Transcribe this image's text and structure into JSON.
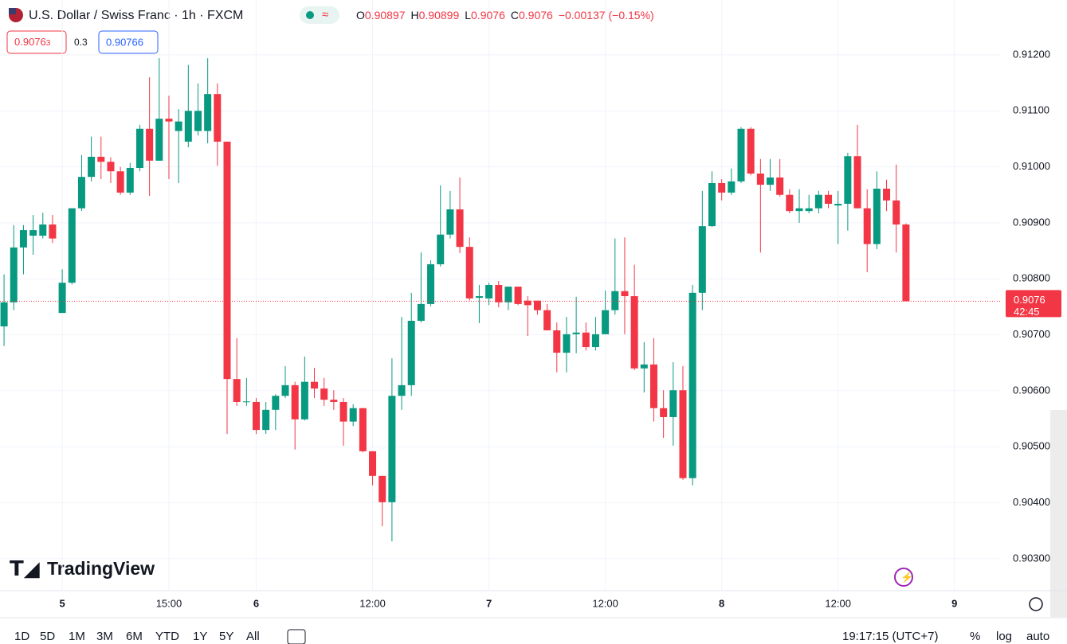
{
  "ui": {
    "symbol": "U.S. Dollar / Swiss Franc · 1h · FXCM",
    "ohlc_letters": [
      "O",
      "H",
      "L",
      "C"
    ],
    "change": "−0.00137 (−0.15%)",
    "bid": "0.9076",
    "bid_small": "3",
    "spread": "0.3",
    "ask": "0.90766",
    "countdown": "42:45",
    "logo": "TradingView",
    "ranges": [
      "1D",
      "5D",
      "1M",
      "3M",
      "6M",
      "YTD",
      "1Y",
      "5Y",
      "All"
    ],
    "clock": "19:17:15 (UTC+7)",
    "scale_options": [
      "%",
      "log",
      "auto"
    ]
  },
  "chart_data": {
    "type": "candlestick",
    "up_color": "#089981",
    "down_color": "#f23645",
    "grid": true,
    "categories": [
      null,
      null,
      null,
      null,
      null,
      null,
      "5",
      null,
      null,
      null,
      null,
      null,
      null,
      null,
      null,
      null,
      null,
      "15:00",
      null,
      null,
      null,
      null,
      null,
      null,
      null,
      null,
      "6",
      null,
      null,
      null,
      null,
      null,
      null,
      null,
      null,
      null,
      null,
      null,
      "12:00",
      null,
      null,
      null,
      null,
      null,
      null,
      null,
      null,
      null,
      null,
      null,
      "7",
      null,
      null,
      null,
      null,
      null,
      null,
      null,
      null,
      null,
      null,
      null,
      "12:00",
      null,
      null,
      null,
      null,
      null,
      null,
      null,
      null,
      null,
      null,
      null,
      "8",
      null,
      null,
      null,
      null,
      null,
      null,
      null,
      null,
      null,
      null,
      null,
      "12:00",
      null,
      null,
      null,
      null,
      null,
      null,
      null,
      null,
      null,
      null,
      null,
      "9",
      null,
      null,
      null,
      null
    ],
    "open": [
      0.90715,
      0.90758,
      0.90856,
      0.90877,
      0.90877,
      0.90897,
      0.90739,
      0.90793,
      0.90926,
      0.90982,
      0.91018,
      0.91009,
      0.90992,
      0.90954,
      0.90998,
      0.91068,
      0.91011,
      0.91086,
      0.91064,
      0.91045,
      0.91064,
      0.91064,
      0.9113,
      0.91045,
      0.90621,
      0.9058,
      0.9058,
      0.9053,
      0.90566,
      0.90591,
      0.9061,
      0.90549,
      0.90616,
      0.90604,
      0.90584,
      0.9058,
      0.90545,
      0.90569,
      0.90492,
      0.90448,
      0.90401,
      0.90591,
      0.9061,
      0.90725,
      0.90755,
      0.90826,
      0.90879,
      0.90924,
      0.90857,
      0.90766,
      0.90765,
      0.90789,
      0.90758,
      0.90786,
      0.90761,
      0.90761,
      0.90744,
      0.90708,
      0.90668,
      0.90701,
      0.90704,
      0.90678,
      0.90701,
      0.90744,
      0.90778,
      0.90769,
      0.9064,
      0.90647,
      0.90569,
      0.90553,
      0.90601,
      0.90444,
      0.90775,
      0.90894,
      0.90971,
      0.90954,
      0.90974,
      0.91068,
      0.90988,
      0.90968,
      0.90981,
      0.9095,
      0.90921,
      0.90921,
      0.90926,
      0.9095,
      0.90931,
      0.90934,
      0.91019,
      0.90926,
      0.90862,
      0.90961,
      0.9094,
      0.90897,
      null,
      null,
      null,
      null,
      null,
      null,
      null,
      null,
      null
    ],
    "high": [
      0.90808,
      0.90896,
      0.90896,
      0.90914,
      0.90918,
      0.90914,
      0.90817,
      0.90926,
      0.91021,
      0.91054,
      0.91054,
      0.91017,
      0.91,
      0.91007,
      0.91075,
      0.9116,
      0.91194,
      0.91127,
      0.91103,
      0.91182,
      0.91149,
      0.91194,
      0.91149,
      0.91045,
      0.90694,
      0.90623,
      0.90587,
      0.9058,
      0.90594,
      0.90644,
      0.90616,
      0.90661,
      0.90641,
      0.90623,
      0.90601,
      0.90587,
      0.90576,
      0.90569,
      0.90492,
      0.90448,
      0.90658,
      0.90732,
      0.90775,
      0.90847,
      0.90833,
      0.90967,
      0.90957,
      0.90981,
      0.90874,
      0.90789,
      0.90793,
      0.90796,
      0.90786,
      0.90786,
      0.90769,
      0.90761,
      0.90755,
      0.90722,
      0.90732,
      0.90768,
      0.90722,
      0.90732,
      0.90779,
      0.90872,
      0.90874,
      0.90825,
      0.90687,
      0.90694,
      0.90601,
      0.90651,
      0.90644,
      0.90789,
      0.90957,
      0.90992,
      0.90978,
      0.90997,
      0.91071,
      0.91071,
      0.91014,
      0.91014,
      0.91014,
      0.9096,
      0.9096,
      0.9095,
      0.90957,
      0.90957,
      0.90957,
      0.91025,
      0.91075,
      0.9096,
      0.90992,
      0.90977,
      0.91004,
      0.90899,
      null,
      null,
      null,
      null,
      null,
      null,
      null,
      null,
      null
    ],
    "low": [
      0.9068,
      0.90744,
      0.90808,
      0.90843,
      0.90872,
      0.90864,
      0.90739,
      0.9079,
      0.90921,
      0.90974,
      0.90978,
      0.90971,
      0.9095,
      0.9095,
      0.90992,
      0.90948,
      0.91011,
      0.90978,
      0.90971,
      0.91035,
      0.91056,
      0.91042,
      0.91002,
      0.90523,
      0.90573,
      0.90573,
      0.90523,
      0.90523,
      0.9053,
      0.90587,
      0.90495,
      0.90547,
      0.90587,
      0.90573,
      0.90566,
      0.90502,
      0.90537,
      0.9049,
      0.90431,
      0.90358,
      0.90331,
      0.90566,
      0.90591,
      0.90722,
      0.90751,
      0.90822,
      0.90872,
      0.90846,
      0.90761,
      0.90721,
      0.90753,
      0.90749,
      0.90744,
      0.90753,
      0.90698,
      0.90736,
      0.90708,
      0.90633,
      0.90633,
      0.90667,
      0.90672,
      0.90672,
      0.90701,
      0.90736,
      0.90701,
      0.90637,
      0.90597,
      0.90545,
      0.90516,
      0.90502,
      0.90441,
      0.90431,
      0.90744,
      0.90893,
      0.9094,
      0.9095,
      0.90971,
      0.90985,
      0.90847,
      0.90957,
      0.90947,
      0.90917,
      0.909,
      0.90917,
      0.90917,
      0.90926,
      0.90862,
      0.90886,
      0.90926,
      0.90812,
      0.90853,
      0.90921,
      0.90847,
      0.9076,
      null,
      null,
      null,
      null,
      null,
      null,
      null,
      null,
      null
    ],
    "close": [
      0.90758,
      0.90856,
      0.90887,
      0.90887,
      0.90897,
      0.90872,
      0.90793,
      0.90926,
      0.90982,
      0.91018,
      0.91009,
      0.90992,
      0.90954,
      0.90998,
      0.91068,
      0.91011,
      0.91086,
      0.91081,
      0.91081,
      0.911,
      0.911,
      0.9113,
      0.91045,
      0.90621,
      0.9058,
      0.90581,
      0.9053,
      0.90566,
      0.90591,
      0.9061,
      0.90549,
      0.90616,
      0.90604,
      0.90584,
      0.9058,
      0.90545,
      0.90569,
      0.90492,
      0.90448,
      0.90401,
      0.90591,
      0.9061,
      0.90725,
      0.90755,
      0.90826,
      0.90879,
      0.90924,
      0.90857,
      0.90765,
      0.90769,
      0.90789,
      0.90758,
      0.90786,
      0.90755,
      0.90753,
      0.90744,
      0.90708,
      0.90668,
      0.90701,
      0.90704,
      0.90678,
      0.90701,
      0.90744,
      0.90778,
      0.90769,
      0.9064,
      0.90647,
      0.90569,
      0.90553,
      0.90601,
      0.90444,
      0.90775,
      0.90894,
      0.90971,
      0.90954,
      0.90974,
      0.91068,
      0.90988,
      0.90968,
      0.90981,
      0.9095,
      0.90921,
      0.90926,
      0.90926,
      0.9095,
      0.90934,
      0.90934,
      0.91019,
      0.90926,
      0.90862,
      0.90961,
      0.9094,
      0.90897,
      0.9076,
      null,
      null,
      null,
      null,
      null,
      null,
      null,
      null,
      null
    ],
    "ylim": [
      0.90243,
      0.91298
    ],
    "yticks": [
      {
        "value": 0.903,
        "label": "0.90300"
      },
      {
        "value": 0.904,
        "label": "0.90400"
      },
      {
        "value": 0.905,
        "label": "0.90500"
      },
      {
        "value": 0.906,
        "label": "0.90600"
      },
      {
        "value": 0.907,
        "label": "0.90700"
      },
      {
        "value": 0.908,
        "label": "0.90800"
      },
      {
        "value": 0.909,
        "label": "0.90900"
      },
      {
        "value": 0.91,
        "label": "0.91000"
      },
      {
        "value": 0.911,
        "label": "0.91100"
      },
      {
        "value": 0.912,
        "label": "0.91200"
      }
    ]
  }
}
